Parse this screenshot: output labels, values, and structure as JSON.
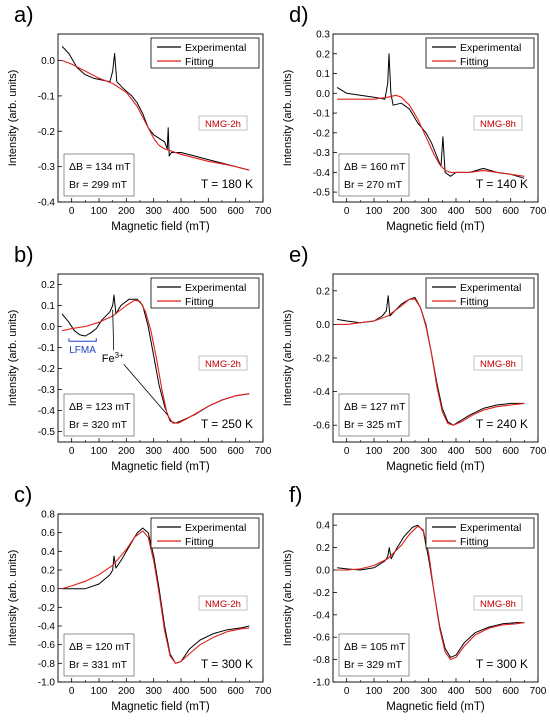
{
  "colors": {
    "experimental": "#000000",
    "fitting": "#e0201a",
    "sample_label": "#c00000",
    "lfma": "#1f3fbf"
  },
  "chart_data": [
    {
      "type": "line",
      "letter": "a)",
      "sample": "NMG-2h",
      "temperature": "T = 180 K",
      "delta_b": "ΔB = 134 mT",
      "b_r": "Br = 299 mT",
      "xlabel": "Magnetic field (mT)",
      "ylabel": "Intensity (arb. units)",
      "xlim": [
        -50,
        700
      ],
      "ylim": [
        -0.4,
        0.075
      ],
      "xticks": [
        0,
        100,
        200,
        300,
        400,
        500,
        600,
        700
      ],
      "yticks": [
        -0.4,
        -0.3,
        -0.2,
        -0.1,
        0.0
      ],
      "ytick_labels": [
        "-0.4",
        "-0.3",
        "-0.2",
        "-0.1",
        "0.0"
      ],
      "legend": [
        "Experimental",
        "Fitting"
      ],
      "series": [
        {
          "name": "Experimental",
          "x": [
            -35,
            -10,
            20,
            50,
            80,
            110,
            140,
            150,
            157,
            165,
            190,
            220,
            240,
            260,
            280,
            300,
            320,
            340,
            350,
            353,
            357,
            365,
            400,
            450,
            500,
            550,
            600,
            650
          ],
          "y": [
            0.04,
            0.02,
            -0.02,
            -0.04,
            -0.05,
            -0.055,
            -0.06,
            -0.03,
            0.02,
            -0.06,
            -0.08,
            -0.1,
            -0.12,
            -0.15,
            -0.19,
            -0.21,
            -0.22,
            -0.23,
            -0.25,
            -0.19,
            -0.27,
            -0.26,
            -0.26,
            -0.27,
            -0.28,
            -0.29,
            -0.3,
            -0.31
          ]
        },
        {
          "name": "Fitting",
          "x": [
            -35,
            0,
            50,
            100,
            150,
            180,
            200,
            220,
            240,
            260,
            280,
            300,
            320,
            340,
            360,
            380,
            400,
            450,
            500,
            550,
            600,
            650
          ],
          "y": [
            0.0,
            -0.01,
            -0.03,
            -0.05,
            -0.065,
            -0.08,
            -0.09,
            -0.11,
            -0.13,
            -0.16,
            -0.19,
            -0.22,
            -0.24,
            -0.25,
            -0.255,
            -0.26,
            -0.265,
            -0.275,
            -0.285,
            -0.292,
            -0.3,
            -0.31
          ]
        }
      ]
    },
    {
      "type": "line",
      "letter": "d)",
      "sample": "NMG-8h",
      "temperature": "T = 140 K",
      "delta_b": "ΔB = 160 mT",
      "b_r": "Br = 270 mT",
      "xlabel": "Magnetic field (mT)",
      "ylabel": "Intensity (arb. units)",
      "xlim": [
        -50,
        700
      ],
      "ylim": [
        -0.55,
        0.3
      ],
      "xticks": [
        0,
        100,
        200,
        300,
        400,
        500,
        600,
        700
      ],
      "yticks": [
        -0.5,
        -0.4,
        -0.3,
        -0.2,
        -0.1,
        0.0,
        0.1,
        0.2,
        0.3
      ],
      "ytick_labels": [
        "-0.5",
        "-0.4",
        "-0.3",
        "-0.2",
        "-0.1",
        "0.0",
        "0.1",
        "0.2",
        "0.3"
      ],
      "legend": [
        "Experimental",
        "Fitting"
      ],
      "series": [
        {
          "name": "Experimental",
          "x": [
            -35,
            0,
            50,
            100,
            140,
            150,
            155,
            162,
            170,
            200,
            230,
            260,
            290,
            310,
            330,
            345,
            352,
            360,
            380,
            400,
            450,
            500,
            550,
            600,
            650
          ],
          "y": [
            0.03,
            0.0,
            -0.01,
            -0.02,
            -0.03,
            0.05,
            0.2,
            0.0,
            -0.06,
            -0.05,
            -0.08,
            -0.15,
            -0.2,
            -0.25,
            -0.32,
            -0.37,
            -0.22,
            -0.4,
            -0.42,
            -0.4,
            -0.4,
            -0.38,
            -0.4,
            -0.41,
            -0.43
          ]
        },
        {
          "name": "Fitting",
          "x": [
            -35,
            0,
            50,
            100,
            150,
            180,
            200,
            230,
            260,
            290,
            320,
            340,
            360,
            380,
            400,
            450,
            500,
            550,
            600,
            650
          ],
          "y": [
            -0.03,
            -0.03,
            -0.03,
            -0.03,
            -0.02,
            -0.01,
            -0.02,
            -0.06,
            -0.13,
            -0.22,
            -0.31,
            -0.36,
            -0.39,
            -0.4,
            -0.4,
            -0.4,
            -0.39,
            -0.4,
            -0.41,
            -0.42
          ]
        }
      ]
    },
    {
      "type": "line",
      "letter": "b)",
      "sample": "NMG-2h",
      "temperature": "T = 250 K",
      "delta_b": "ΔB = 123 mT",
      "b_r": "Br = 320 mT",
      "annotations": [
        "LFMA",
        "Fe3+"
      ],
      "xlabel": "Magnetic field (mT)",
      "ylabel": "Intensity (arb. units)",
      "xlim": [
        -50,
        700
      ],
      "ylim": [
        -0.55,
        0.25
      ],
      "xticks": [
        0,
        100,
        200,
        300,
        400,
        500,
        600,
        700
      ],
      "yticks": [
        -0.5,
        -0.4,
        -0.3,
        -0.2,
        -0.1,
        0.0,
        0.1,
        0.2
      ],
      "ytick_labels": [
        "-0.5",
        "-0.4",
        "-0.3",
        "-0.2",
        "-0.1",
        "0.0",
        "0.1",
        "0.2"
      ],
      "legend": [
        "Experimental",
        "Fitting"
      ],
      "series": [
        {
          "name": "Experimental",
          "x": [
            -35,
            -10,
            10,
            30,
            50,
            70,
            90,
            110,
            140,
            150,
            155,
            162,
            180,
            210,
            240,
            260,
            280,
            300,
            320,
            340,
            360,
            380,
            400,
            450,
            500,
            550,
            600,
            650
          ],
          "y": [
            0.06,
            0.02,
            -0.02,
            -0.04,
            -0.045,
            -0.03,
            -0.01,
            0.03,
            0.07,
            0.1,
            0.15,
            0.06,
            0.1,
            0.13,
            0.13,
            0.1,
            0.0,
            -0.14,
            -0.28,
            -0.38,
            -0.45,
            -0.46,
            -0.45,
            -0.42,
            -0.38,
            -0.35,
            -0.33,
            -0.32
          ]
        },
        {
          "name": "Fitting",
          "x": [
            -35,
            0,
            50,
            100,
            150,
            200,
            230,
            250,
            270,
            290,
            310,
            330,
            350,
            370,
            390,
            420,
            460,
            500,
            550,
            600,
            650
          ],
          "y": [
            -0.02,
            -0.01,
            0.0,
            0.02,
            0.05,
            0.1,
            0.125,
            0.12,
            0.07,
            -0.02,
            -0.15,
            -0.3,
            -0.42,
            -0.46,
            -0.46,
            -0.44,
            -0.41,
            -0.38,
            -0.35,
            -0.33,
            -0.32
          ]
        }
      ]
    },
    {
      "type": "line",
      "letter": "e)",
      "sample": "NMG-8h",
      "temperature": "T = 240 K",
      "delta_b": "ΔB = 127 mT",
      "b_r": "Br = 325 mT",
      "xlabel": "Magnetic field (mT)",
      "ylabel": "Intensity (arb. units)",
      "xlim": [
        -50,
        700
      ],
      "ylim": [
        -0.7,
        0.3
      ],
      "xticks": [
        0,
        100,
        200,
        300,
        400,
        500,
        600,
        700
      ],
      "yticks": [
        -0.6,
        -0.4,
        -0.2,
        0.0,
        0.2
      ],
      "ytick_labels": [
        "-0.6",
        "-0.4",
        "-0.2",
        "0.0",
        "0.2"
      ],
      "legend": [
        "Experimental",
        "Fitting"
      ],
      "series": [
        {
          "name": "Experimental",
          "x": [
            -35,
            0,
            50,
            100,
            130,
            145,
            152,
            158,
            170,
            200,
            230,
            250,
            270,
            290,
            310,
            330,
            350,
            370,
            390,
            410,
            450,
            500,
            550,
            600,
            650
          ],
          "y": [
            0.03,
            0.02,
            0.01,
            0.02,
            0.05,
            0.08,
            0.17,
            0.05,
            0.07,
            0.12,
            0.15,
            0.16,
            0.1,
            0.0,
            -0.17,
            -0.35,
            -0.5,
            -0.58,
            -0.6,
            -0.58,
            -0.54,
            -0.5,
            -0.48,
            -0.47,
            -0.47
          ]
        },
        {
          "name": "Fitting",
          "x": [
            -35,
            0,
            50,
            100,
            150,
            200,
            230,
            250,
            270,
            290,
            310,
            330,
            350,
            370,
            390,
            420,
            460,
            500,
            550,
            600,
            650
          ],
          "y": [
            0.0,
            0.0,
            0.01,
            0.02,
            0.05,
            0.11,
            0.15,
            0.15,
            0.1,
            -0.01,
            -0.17,
            -0.37,
            -0.52,
            -0.59,
            -0.6,
            -0.58,
            -0.54,
            -0.51,
            -0.49,
            -0.48,
            -0.47
          ]
        }
      ]
    },
    {
      "type": "line",
      "letter": "c)",
      "sample": "NMG-2h",
      "temperature": "T = 300 K",
      "delta_b": "ΔB = 120 mT",
      "b_r": "Br = 331 mT",
      "xlabel": "Magnetic field (mT)",
      "ylabel": "Intensity (arb. units)",
      "xlim": [
        -50,
        700
      ],
      "ylim": [
        -1.0,
        0.8
      ],
      "xticks": [
        0,
        100,
        200,
        300,
        400,
        500,
        600,
        700
      ],
      "yticks": [
        -1.0,
        -0.8,
        -0.6,
        -0.4,
        -0.2,
        0.0,
        0.2,
        0.4,
        0.6,
        0.8
      ],
      "ytick_labels": [
        "-1.0",
        "-0.8",
        "-0.6",
        "-0.4",
        "-0.2",
        "0.0",
        "0.2",
        "0.4",
        "0.6",
        "0.8"
      ],
      "legend": [
        "Experimental",
        "Fitting"
      ],
      "series": [
        {
          "name": "Experimental",
          "x": [
            -35,
            0,
            50,
            100,
            140,
            150,
            155,
            162,
            180,
            210,
            240,
            260,
            280,
            300,
            320,
            340,
            360,
            380,
            400,
            430,
            470,
            520,
            570,
            620,
            650
          ],
          "y": [
            0.0,
            0.0,
            0.0,
            0.05,
            0.15,
            0.2,
            0.35,
            0.22,
            0.3,
            0.45,
            0.6,
            0.65,
            0.6,
            0.35,
            0.0,
            -0.4,
            -0.7,
            -0.8,
            -0.78,
            -0.65,
            -0.55,
            -0.48,
            -0.44,
            -0.42,
            -0.4
          ]
        },
        {
          "name": "Fitting",
          "x": [
            -35,
            0,
            50,
            100,
            150,
            200,
            230,
            260,
            280,
            300,
            320,
            340,
            360,
            380,
            400,
            430,
            470,
            520,
            570,
            620,
            650
          ],
          "y": [
            0.0,
            0.03,
            0.08,
            0.15,
            0.25,
            0.42,
            0.55,
            0.62,
            0.55,
            0.3,
            -0.05,
            -0.45,
            -0.72,
            -0.8,
            -0.78,
            -0.7,
            -0.6,
            -0.52,
            -0.46,
            -0.43,
            -0.42
          ]
        }
      ]
    },
    {
      "type": "line",
      "letter": "f)",
      "sample": "NMG-8h",
      "temperature": "T = 300 K",
      "delta_b": "ΔB = 105 mT",
      "b_r": "Br = 329 mT",
      "xlabel": "Magnetic field (mT)",
      "ylabel": "Intensity (arb. units)",
      "xlim": [
        -50,
        700
      ],
      "ylim": [
        -1.0,
        0.5
      ],
      "xticks": [
        0,
        100,
        200,
        300,
        400,
        500,
        600,
        700
      ],
      "yticks": [
        -1.0,
        -0.8,
        -0.6,
        -0.4,
        -0.2,
        0.0,
        0.2,
        0.4
      ],
      "ytick_labels": [
        "-1.0",
        "-0.8",
        "-0.6",
        "-0.4",
        "-0.2",
        "0.0",
        "0.2",
        "0.4"
      ],
      "legend": [
        "Experimental",
        "Fitting"
      ],
      "series": [
        {
          "name": "Experimental",
          "x": [
            -35,
            0,
            50,
            100,
            140,
            150,
            156,
            163,
            180,
            210,
            240,
            260,
            280,
            300,
            320,
            340,
            360,
            380,
            400,
            430,
            470,
            520,
            570,
            620,
            650
          ],
          "y": [
            0.02,
            0.01,
            0.0,
            0.02,
            0.08,
            0.12,
            0.2,
            0.1,
            0.18,
            0.3,
            0.38,
            0.4,
            0.35,
            0.1,
            -0.2,
            -0.5,
            -0.7,
            -0.78,
            -0.76,
            -0.65,
            -0.56,
            -0.51,
            -0.48,
            -0.47,
            -0.47
          ]
        },
        {
          "name": "Fitting",
          "x": [
            -35,
            0,
            50,
            100,
            150,
            200,
            230,
            260,
            280,
            300,
            320,
            340,
            360,
            380,
            400,
            430,
            470,
            520,
            570,
            620,
            650
          ],
          "y": [
            0.0,
            0.0,
            0.01,
            0.04,
            0.1,
            0.22,
            0.32,
            0.39,
            0.36,
            0.15,
            -0.2,
            -0.52,
            -0.73,
            -0.8,
            -0.78,
            -0.68,
            -0.58,
            -0.52,
            -0.49,
            -0.48,
            -0.47
          ]
        }
      ]
    }
  ]
}
